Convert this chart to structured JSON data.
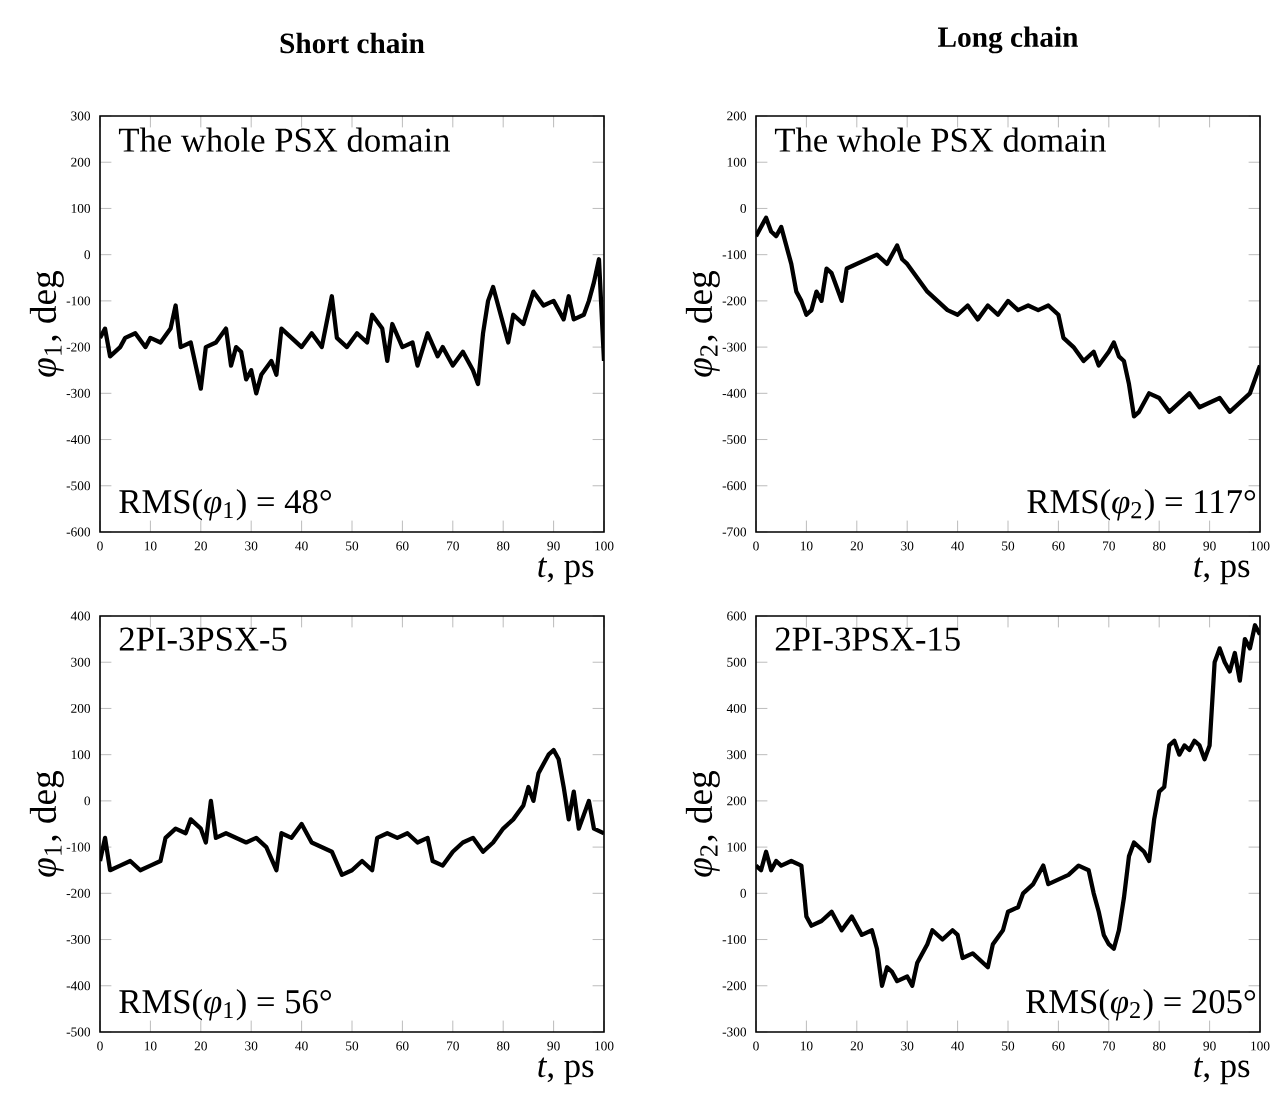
{
  "chart_data": [
    {
      "type": "line",
      "title": "**Short chain**",
      "xlabel": "*t*, ps",
      "ylabel": "*φ*$_{1}$, deg",
      "annotations": [
        "The whole PSX domain",
        "RMS(*φ*$_{1}$) = 48°"
      ],
      "xlim": [
        0,
        100
      ],
      "ylim": [
        -600,
        300
      ],
      "xticks": [
        0,
        10,
        20,
        30,
        40,
        50,
        60,
        70,
        80,
        90,
        100
      ],
      "yticks": [
        -600,
        -500,
        -400,
        -300,
        -200,
        -100,
        0,
        100,
        200,
        300
      ],
      "series": [
        {
          "color": "#000000",
          "x": [
            0,
            1,
            2,
            4,
            5,
            7,
            9,
            10,
            12,
            14,
            15,
            16,
            18,
            19,
            20,
            21,
            23,
            25,
            26,
            27,
            28,
            29,
            30,
            31,
            32,
            34,
            35,
            36,
            38,
            40,
            42,
            44,
            46,
            47,
            49,
            51,
            53,
            54,
            56,
            57,
            58,
            60,
            62,
            63,
            65,
            67,
            68,
            70,
            72,
            74,
            75,
            76,
            77,
            78,
            80,
            81,
            82,
            84,
            86,
            88,
            90,
            92,
            93,
            94,
            96,
            97,
            98,
            99,
            100
          ],
          "values": [
            -180,
            -160,
            -220,
            -200,
            -180,
            -170,
            -200,
            -180,
            -190,
            -160,
            -110,
            -200,
            -190,
            -240,
            -290,
            -200,
            -190,
            -160,
            -240,
            -200,
            -210,
            -270,
            -250,
            -300,
            -260,
            -230,
            -260,
            -160,
            -180,
            -200,
            -170,
            -200,
            -90,
            -180,
            -200,
            -170,
            -190,
            -130,
            -160,
            -230,
            -150,
            -200,
            -190,
            -240,
            -170,
            -220,
            -200,
            -240,
            -210,
            -250,
            -280,
            -170,
            -100,
            -70,
            -150,
            -190,
            -130,
            -150,
            -80,
            -110,
            -100,
            -140,
            -90,
            -140,
            -130,
            -100,
            -60,
            -10,
            -230
          ]
        }
      ]
    },
    {
      "type": "line",
      "title": "**Long chain**",
      "xlabel": "*t*, ps",
      "ylabel": "*φ*$_{2}$, deg",
      "annotations": [
        "The whole PSX domain",
        "RMS(*φ*$_{2}$) = 117°"
      ],
      "xlim": [
        0,
        100
      ],
      "ylim": [
        -700,
        200
      ],
      "xticks": [
        0,
        10,
        20,
        30,
        40,
        50,
        60,
        70,
        80,
        90,
        100
      ],
      "yticks": [
        -700,
        -600,
        -500,
        -400,
        -300,
        -200,
        -100,
        0,
        100,
        200
      ],
      "series": [
        {
          "color": "#000000",
          "x": [
            0,
            1,
            2,
            3,
            4,
            5,
            6,
            7,
            8,
            9,
            10,
            11,
            12,
            13,
            14,
            15,
            16,
            17,
            18,
            20,
            22,
            24,
            26,
            28,
            29,
            30,
            32,
            34,
            36,
            38,
            40,
            42,
            44,
            46,
            48,
            50,
            52,
            54,
            56,
            58,
            60,
            61,
            63,
            65,
            67,
            68,
            70,
            71,
            72,
            73,
            74,
            75,
            76,
            78,
            80,
            82,
            84,
            86,
            88,
            90,
            92,
            94,
            96,
            98,
            100
          ],
          "values": [
            -60,
            -40,
            -20,
            -50,
            -60,
            -40,
            -80,
            -120,
            -180,
            -200,
            -230,
            -220,
            -180,
            -200,
            -130,
            -140,
            -170,
            -200,
            -130,
            -120,
            -110,
            -100,
            -120,
            -80,
            -110,
            -120,
            -150,
            -180,
            -200,
            -220,
            -230,
            -210,
            -240,
            -210,
            -230,
            -200,
            -220,
            -210,
            -220,
            -210,
            -230,
            -280,
            -300,
            -330,
            -310,
            -340,
            -310,
            -290,
            -320,
            -330,
            -380,
            -450,
            -440,
            -400,
            -410,
            -440,
            -420,
            -400,
            -430,
            -420,
            -410,
            -440,
            -420,
            -400,
            -340
          ]
        }
      ]
    },
    {
      "type": "line",
      "xlabel": "*t*, ps",
      "ylabel": "*φ*$_{1}$, deg",
      "annotations": [
        "2PI-3PSX-5",
        "RMS(*φ*$_{1}$) = 56°"
      ],
      "xlim": [
        0,
        100
      ],
      "ylim": [
        -500,
        400
      ],
      "xticks": [
        0,
        10,
        20,
        30,
        40,
        50,
        60,
        70,
        80,
        90,
        100
      ],
      "yticks": [
        -500,
        -400,
        -300,
        -200,
        -100,
        0,
        100,
        200,
        300,
        400
      ],
      "series": [
        {
          "color": "#000000",
          "x": [
            0,
            1,
            2,
            4,
            6,
            8,
            10,
            12,
            13,
            15,
            17,
            18,
            20,
            21,
            22,
            23,
            25,
            27,
            29,
            31,
            33,
            35,
            36,
            38,
            40,
            42,
            44,
            46,
            48,
            50,
            52,
            54,
            55,
            57,
            59,
            61,
            63,
            65,
            66,
            68,
            70,
            72,
            74,
            76,
            78,
            80,
            82,
            84,
            85,
            86,
            87,
            88,
            89,
            90,
            91,
            92,
            93,
            94,
            95,
            96,
            97,
            98,
            100
          ],
          "values": [
            -130,
            -80,
            -150,
            -140,
            -130,
            -150,
            -140,
            -130,
            -80,
            -60,
            -70,
            -40,
            -60,
            -90,
            0,
            -80,
            -70,
            -80,
            -90,
            -80,
            -100,
            -150,
            -70,
            -80,
            -50,
            -90,
            -100,
            -110,
            -160,
            -150,
            -130,
            -150,
            -80,
            -70,
            -80,
            -70,
            -90,
            -80,
            -130,
            -140,
            -110,
            -90,
            -80,
            -110,
            -90,
            -60,
            -40,
            -10,
            30,
            0,
            60,
            80,
            100,
            110,
            90,
            30,
            -40,
            20,
            -60,
            -30,
            0,
            -60,
            -70
          ]
        }
      ]
    },
    {
      "type": "line",
      "xlabel": "*t*, ps",
      "ylabel": "*φ*$_{2}$, deg",
      "annotations": [
        "2PI-3PSX-15",
        "RMS(*φ*$_{2}$) = 205°"
      ],
      "xlim": [
        0,
        100
      ],
      "ylim": [
        -300,
        600
      ],
      "xticks": [
        0,
        10,
        20,
        30,
        40,
        50,
        60,
        70,
        80,
        90,
        100
      ],
      "yticks": [
        -300,
        -200,
        -100,
        0,
        100,
        200,
        300,
        400,
        500,
        600
      ],
      "series": [
        {
          "color": "#000000",
          "x": [
            0,
            1,
            2,
            3,
            4,
            5,
            7,
            9,
            10,
            11,
            13,
            15,
            17,
            19,
            21,
            23,
            24,
            25,
            26,
            27,
            28,
            30,
            31,
            32,
            34,
            35,
            37,
            39,
            40,
            41,
            43,
            45,
            46,
            47,
            49,
            50,
            52,
            53,
            55,
            57,
            58,
            60,
            62,
            64,
            66,
            67,
            68,
            69,
            70,
            71,
            72,
            73,
            74,
            75,
            76,
            77,
            78,
            79,
            80,
            81,
            82,
            83,
            84,
            85,
            86,
            87,
            88,
            89,
            90,
            91,
            92,
            93,
            94,
            95,
            96,
            97,
            98,
            99,
            100
          ],
          "values": [
            60,
            50,
            90,
            50,
            70,
            60,
            70,
            60,
            -50,
            -70,
            -60,
            -40,
            -80,
            -50,
            -90,
            -80,
            -120,
            -200,
            -160,
            -170,
            -190,
            -180,
            -200,
            -150,
            -110,
            -80,
            -100,
            -80,
            -90,
            -140,
            -130,
            -150,
            -160,
            -110,
            -80,
            -40,
            -30,
            0,
            20,
            60,
            20,
            30,
            40,
            60,
            50,
            0,
            -40,
            -90,
            -110,
            -120,
            -80,
            -10,
            80,
            110,
            100,
            90,
            70,
            160,
            220,
            230,
            320,
            330,
            300,
            320,
            310,
            330,
            320,
            290,
            320,
            500,
            530,
            500,
            480,
            520,
            460,
            550,
            530,
            580,
            560
          ]
        }
      ]
    }
  ]
}
